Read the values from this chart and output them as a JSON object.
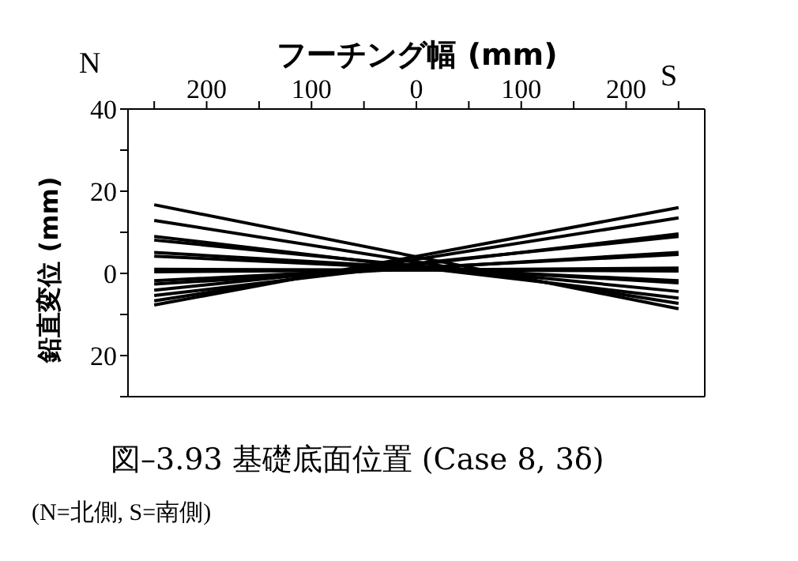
{
  "chart_data": {
    "type": "line",
    "title": "図–3.93 基礎底面位置 (Case 8, 3δ)",
    "xlabel": "フーチング幅 (mm)",
    "ylabel": "鉛直変位 (mm)",
    "annotations": [
      "N",
      "S",
      "(N=北側, S=南側)"
    ],
    "xlim": [
      -275,
      275
    ],
    "xticks": [
      {
        "value": -250,
        "label": null
      },
      {
        "value": -200,
        "label": "200"
      },
      {
        "value": -150,
        "label": null
      },
      {
        "value": -100,
        "label": "100"
      },
      {
        "value": -50,
        "label": null
      },
      0,
      {
        "value": 50,
        "label": null
      },
      100,
      {
        "value": 150,
        "label": null
      },
      200,
      {
        "value": 250,
        "label": null
      }
    ],
    "ylim": [
      -30,
      40
    ],
    "yticks": [
      40,
      {
        "value": 30,
        "label": null
      },
      20,
      {
        "value": 10,
        "label": null
      },
      0,
      {
        "value": -10,
        "label": null
      },
      {
        "value": -20,
        "label": "20"
      },
      {
        "value": -30,
        "label": null
      }
    ],
    "grid": false,
    "marker": "none",
    "line_style": "solid",
    "x": [
      -250,
      250
    ],
    "series": [
      {
        "color": "#000000",
        "values": [
          16.7,
          -8.6
        ]
      },
      {
        "color": "#000000",
        "values": [
          12.9,
          -7.3
        ]
      },
      {
        "color": "#000000",
        "values": [
          9.0,
          -6.0
        ]
      },
      {
        "color": "#000000",
        "values": [
          8.1,
          -4.4
        ]
      },
      {
        "color": "#000000",
        "values": [
          5.1,
          -2.3
        ]
      },
      {
        "color": "#000000",
        "values": [
          4.2,
          -1.8
        ]
      },
      {
        "color": "#000000",
        "values": [
          1.0,
          0.6
        ]
      },
      {
        "color": "#000000",
        "values": [
          0.4,
          1.3
        ]
      },
      {
        "color": "#000000",
        "values": [
          -1.8,
          4.6
        ]
      },
      {
        "color": "#000000",
        "values": [
          -2.6,
          5.1
        ]
      },
      {
        "color": "#000000",
        "values": [
          -4.1,
          9.0
        ]
      },
      {
        "color": "#000000",
        "values": [
          -5.4,
          9.6
        ]
      },
      {
        "color": "#000000",
        "values": [
          -6.7,
          13.5
        ]
      },
      {
        "color": "#000000",
        "values": [
          -7.7,
          16.0
        ]
      }
    ]
  }
}
